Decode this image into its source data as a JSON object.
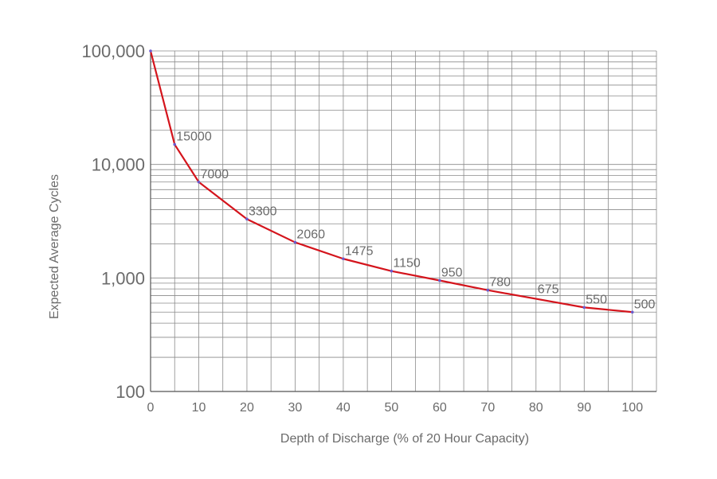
{
  "chart_data": {
    "type": "line",
    "title": "",
    "xlabel": "Depth of Discharge (% of 20 Hour Capacity)",
    "ylabel": "Expected Average Cycles",
    "y_scale": "log",
    "xlim": [
      0,
      105
    ],
    "ylim": [
      100,
      100000
    ],
    "grid": true,
    "x_ticks": [
      0,
      10,
      20,
      30,
      40,
      50,
      60,
      70,
      80,
      90,
      100
    ],
    "x_tick_labels": [
      "0",
      "10",
      "20",
      "30",
      "40",
      "50",
      "60",
      "70",
      "80",
      "90",
      "100"
    ],
    "y_ticks": [
      100,
      1000,
      10000,
      100000
    ],
    "y_tick_labels": [
      "100",
      "1,000",
      "10,000",
      "100,000"
    ],
    "line_color": "#d4141c",
    "marker_color": "#6a5acd",
    "series": [
      {
        "x": [
          0,
          5,
          10,
          20,
          30,
          40,
          50,
          60,
          70,
          90,
          100
        ],
        "values": [
          100000,
          15000,
          7000,
          3300,
          2060,
          1475,
          1150,
          950,
          780,
          550,
          500
        ]
      }
    ],
    "point_labels": [
      {
        "x": 5,
        "y": 15000,
        "text": "15000"
      },
      {
        "x": 10,
        "y": 7000,
        "text": "7000"
      },
      {
        "x": 20,
        "y": 3300,
        "text": "3300"
      },
      {
        "x": 30,
        "y": 2060,
        "text": "2060"
      },
      {
        "x": 40,
        "y": 1475,
        "text": "1475"
      },
      {
        "x": 50,
        "y": 1150,
        "text": "1150"
      },
      {
        "x": 60,
        "y": 950,
        "text": "950"
      },
      {
        "x": 70,
        "y": 780,
        "text": "780"
      },
      {
        "x": 80,
        "y": 675,
        "text": "675"
      },
      {
        "x": 90,
        "y": 550,
        "text": "550"
      },
      {
        "x": 100,
        "y": 500,
        "text": "500"
      }
    ]
  }
}
